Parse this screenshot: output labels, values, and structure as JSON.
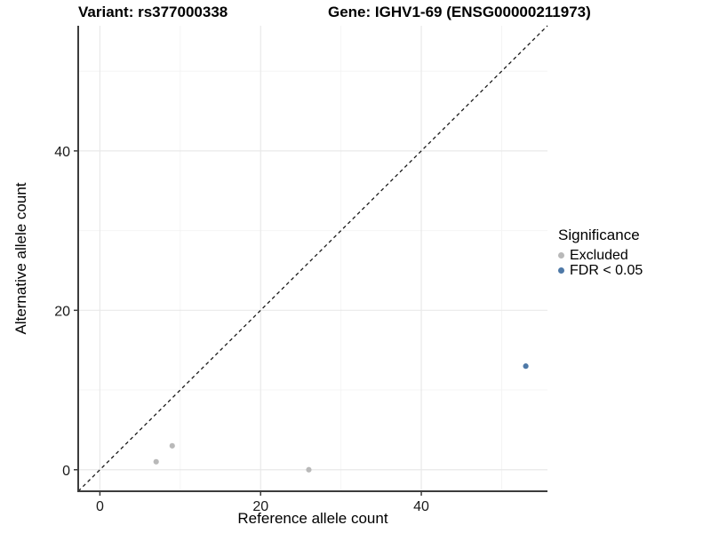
{
  "chart_data": {
    "type": "scatter",
    "title_left": "Variant: rs377000338",
    "title_right": "Gene: IGHV1-69 (ENSG00000211973)",
    "xlabel": "Reference allele count",
    "ylabel": "Alternative allele count",
    "xlim": [
      -2.7,
      55.7
    ],
    "ylim": [
      -2.7,
      55.7
    ],
    "x_ticks": [
      0,
      20,
      40
    ],
    "y_ticks": [
      0,
      20,
      40
    ],
    "x_minor_ticks": [
      10,
      30,
      50
    ],
    "y_minor_ticks": [
      10,
      30,
      50
    ],
    "grid": true,
    "identity_line": {
      "style": "dashed",
      "slope": 1,
      "intercept": 0
    },
    "series": [
      {
        "name": "Excluded",
        "color": "#b9b9b9",
        "points": [
          [
            7,
            1
          ],
          [
            9,
            3
          ],
          [
            26,
            0
          ]
        ]
      },
      {
        "name": "FDR < 0.05",
        "color": "#4e79a7",
        "points": [
          [
            53,
            13
          ]
        ]
      }
    ],
    "legend": {
      "title": "Significance",
      "position": "right"
    }
  },
  "colors": {
    "axis": "#3c3c3c",
    "tick_label": "#1a1a1a",
    "grid_major": "#e9e9e9",
    "grid_minor": "#f4f4f4",
    "identity_line": "#1a1a1a",
    "background": "#ffffff"
  }
}
